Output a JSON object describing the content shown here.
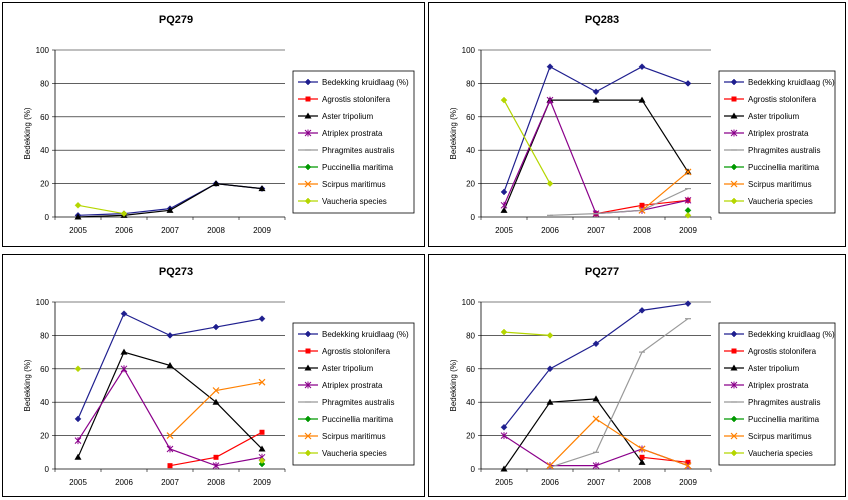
{
  "colors": {
    "Bedekking kruidlaag (%)": "#1f1f8f",
    "Agrostis stolonifera": "#ff0000",
    "Aster tripolium": "#000000",
    "Atriplex prostrata": "#8b008b",
    "Phragmites australis": "#999999",
    "Puccinellia maritima": "#009900",
    "Scirpus maritimus": "#ff8000",
    "Vaucheria species": "#b5d600"
  },
  "markers": {
    "Bedekking kruidlaag (%)": "diamond",
    "Agrostis stolonifera": "square",
    "Aster tripolium": "triangle",
    "Atriplex prostrata": "star",
    "Phragmites australis": "dash",
    "Puccinellia maritima": "diamond",
    "Scirpus maritimus": "x",
    "Vaucheria species": "diamond"
  },
  "chart_data": [
    {
      "type": "line",
      "title": "PQ279",
      "ylabel": "Bedekking (%)",
      "xlabel": "",
      "categories": [
        "2005",
        "2006",
        "2007",
        "2008",
        "2009"
      ],
      "ylim": [
        0,
        100
      ],
      "yticks": [
        "0",
        "20",
        "40",
        "60",
        "80",
        "100"
      ],
      "grid": true,
      "legend": "right",
      "series": [
        {
          "name": "Bedekking kruidlaag (%)",
          "values": [
            1,
            2,
            5,
            20,
            17
          ]
        },
        {
          "name": "Agrostis stolonifera",
          "values": [
            null,
            null,
            null,
            null,
            null
          ]
        },
        {
          "name": "Aster tripolium",
          "values": [
            0,
            1,
            4,
            20,
            17
          ]
        },
        {
          "name": "Atriplex prostrata",
          "values": [
            null,
            null,
            null,
            null,
            null
          ]
        },
        {
          "name": "Phragmites australis",
          "values": [
            null,
            null,
            null,
            null,
            null
          ]
        },
        {
          "name": "Puccinellia maritima",
          "values": [
            null,
            null,
            null,
            null,
            null
          ]
        },
        {
          "name": "Scirpus maritimus",
          "values": [
            null,
            null,
            null,
            null,
            null
          ]
        },
        {
          "name": "Vaucheria species",
          "values": [
            7,
            2,
            null,
            null,
            null
          ]
        }
      ]
    },
    {
      "type": "line",
      "title": "PQ283",
      "ylabel": "Bedekking (%)",
      "xlabel": "",
      "categories": [
        "2005",
        "2006",
        "2007",
        "2008",
        "2009"
      ],
      "ylim": [
        0,
        100
      ],
      "yticks": [
        "0",
        "20",
        "40",
        "60",
        "80",
        "100"
      ],
      "grid": true,
      "legend": "right",
      "series": [
        {
          "name": "Bedekking kruidlaag (%)",
          "values": [
            15,
            90,
            75,
            90,
            80
          ]
        },
        {
          "name": "Agrostis stolonifera",
          "values": [
            null,
            null,
            2,
            7,
            10
          ]
        },
        {
          "name": "Aster tripolium",
          "values": [
            4,
            70,
            70,
            70,
            27
          ]
        },
        {
          "name": "Atriplex prostrata",
          "values": [
            7,
            70,
            2,
            4,
            10
          ]
        },
        {
          "name": "Phragmites australis",
          "values": [
            null,
            1,
            2,
            4,
            17
          ]
        },
        {
          "name": "Puccinellia maritima",
          "values": [
            null,
            null,
            null,
            null,
            4
          ]
        },
        {
          "name": "Scirpus maritimus",
          "values": [
            null,
            null,
            null,
            4,
            27
          ]
        },
        {
          "name": "Vaucheria species",
          "values": [
            70,
            20,
            null,
            null,
            1
          ]
        }
      ]
    },
    {
      "type": "line",
      "title": "PQ273",
      "ylabel": "Bedekking (%)",
      "xlabel": "",
      "categories": [
        "2005",
        "2006",
        "2007",
        "2008",
        "2009"
      ],
      "ylim": [
        0,
        100
      ],
      "yticks": [
        "0",
        "20",
        "40",
        "60",
        "80",
        "100"
      ],
      "grid": true,
      "legend": "right",
      "series": [
        {
          "name": "Bedekking kruidlaag (%)",
          "values": [
            30,
            93,
            80,
            85,
            90
          ]
        },
        {
          "name": "Agrostis stolonifera",
          "values": [
            null,
            null,
            2,
            7,
            22
          ]
        },
        {
          "name": "Aster tripolium",
          "values": [
            7,
            70,
            62,
            40,
            12
          ]
        },
        {
          "name": "Atriplex prostrata",
          "values": [
            17,
            60,
            12,
            2,
            7
          ]
        },
        {
          "name": "Phragmites australis",
          "values": [
            null,
            null,
            null,
            null,
            null
          ]
        },
        {
          "name": "Puccinellia maritima",
          "values": [
            null,
            null,
            null,
            null,
            3
          ]
        },
        {
          "name": "Scirpus maritimus",
          "values": [
            null,
            null,
            20,
            47,
            52
          ]
        },
        {
          "name": "Vaucheria species",
          "values": [
            60,
            null,
            null,
            null,
            5
          ]
        }
      ]
    },
    {
      "type": "line",
      "title": "PQ277",
      "ylabel": "Bedekking (%)",
      "xlabel": "",
      "categories": [
        "2005",
        "2006",
        "2007",
        "2008",
        "2009"
      ],
      "ylim": [
        0,
        100
      ],
      "yticks": [
        "0",
        "20",
        "40",
        "60",
        "80",
        "100"
      ],
      "grid": true,
      "legend": "right",
      "series": [
        {
          "name": "Bedekking kruidlaag (%)",
          "values": [
            25,
            60,
            75,
            95,
            99
          ]
        },
        {
          "name": "Agrostis stolonifera",
          "values": [
            null,
            null,
            null,
            7,
            4
          ]
        },
        {
          "name": "Aster tripolium",
          "values": [
            0,
            40,
            42,
            4,
            null
          ]
        },
        {
          "name": "Atriplex prostrata",
          "values": [
            20,
            2,
            2,
            12,
            2
          ]
        },
        {
          "name": "Phragmites australis",
          "values": [
            null,
            1,
            10,
            70,
            90
          ]
        },
        {
          "name": "Puccinellia maritima",
          "values": [
            null,
            null,
            null,
            null,
            null
          ]
        },
        {
          "name": "Scirpus maritimus",
          "values": [
            null,
            2,
            30,
            12,
            2
          ]
        },
        {
          "name": "Vaucheria species",
          "values": [
            82,
            80,
            null,
            null,
            null
          ]
        }
      ]
    }
  ]
}
